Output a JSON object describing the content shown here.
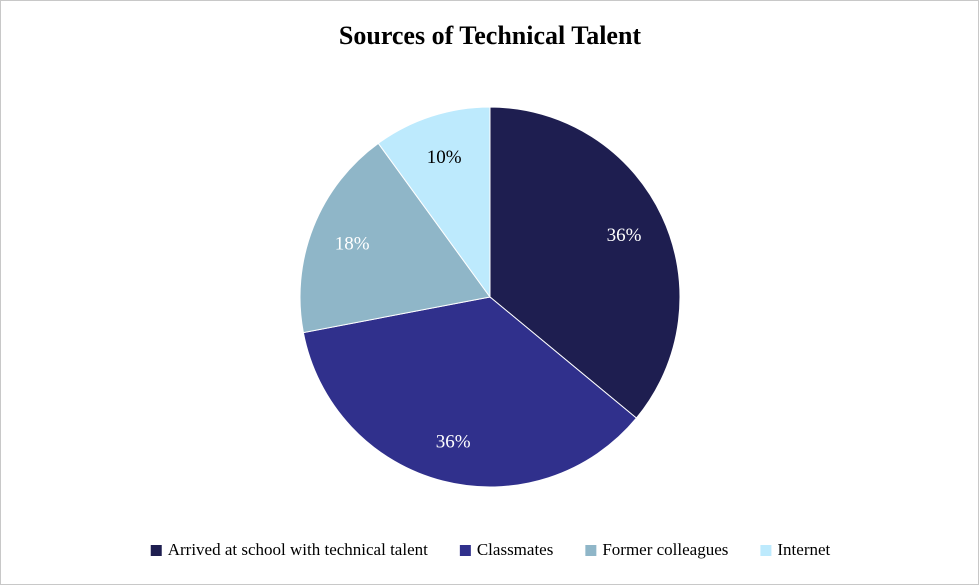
{
  "chart_data": {
    "type": "pie",
    "title": "Sources of Technical Talent",
    "categories": [
      "Arrived at school with technical talent",
      "Classmates",
      "Former colleagues",
      "Internet"
    ],
    "values": [
      36,
      36,
      18,
      10
    ],
    "data_labels": [
      "36%",
      "36%",
      "18%",
      "10%"
    ],
    "colors": [
      "#1e1e50",
      "#30308c",
      "#8fb6c8",
      "#bdeafd"
    ],
    "label_colors": [
      "#ffffff",
      "#ffffff",
      "#ffffff",
      "#000000"
    ],
    "start_angle": "12 o'clock",
    "direction": "clockwise",
    "legend_position": "bottom"
  }
}
